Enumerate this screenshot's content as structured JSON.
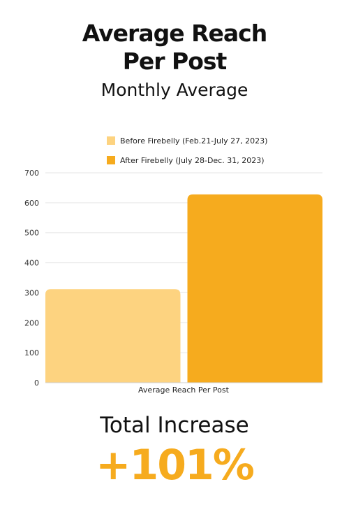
{
  "header": {
    "title_line1": "Average Reach",
    "title_line2": "Per Post",
    "subtitle": "Monthly Average"
  },
  "colors": {
    "before": "#FDD380",
    "after": "#F6AB1E",
    "grid": "#E6E6E6",
    "accent": "#F6AB1E"
  },
  "chart_data": {
    "type": "bar",
    "categories": [
      "Average Reach Per Post"
    ],
    "series": [
      {
        "name": "Before Firebelly (Feb.21-July 27, 2023)",
        "values": [
          312
        ]
      },
      {
        "name": "After Firebelly (July 28-Dec. 31, 2023)",
        "values": [
          628
        ]
      }
    ],
    "xlabel": "",
    "ylabel": "",
    "ylim": [
      0,
      700
    ],
    "yticks": [
      "0",
      "100",
      "200",
      "300",
      "400",
      "500",
      "600",
      "700"
    ],
    "grid": true,
    "legend_position": "top"
  },
  "summary": {
    "label": "Total Increase",
    "value": "+101%"
  }
}
